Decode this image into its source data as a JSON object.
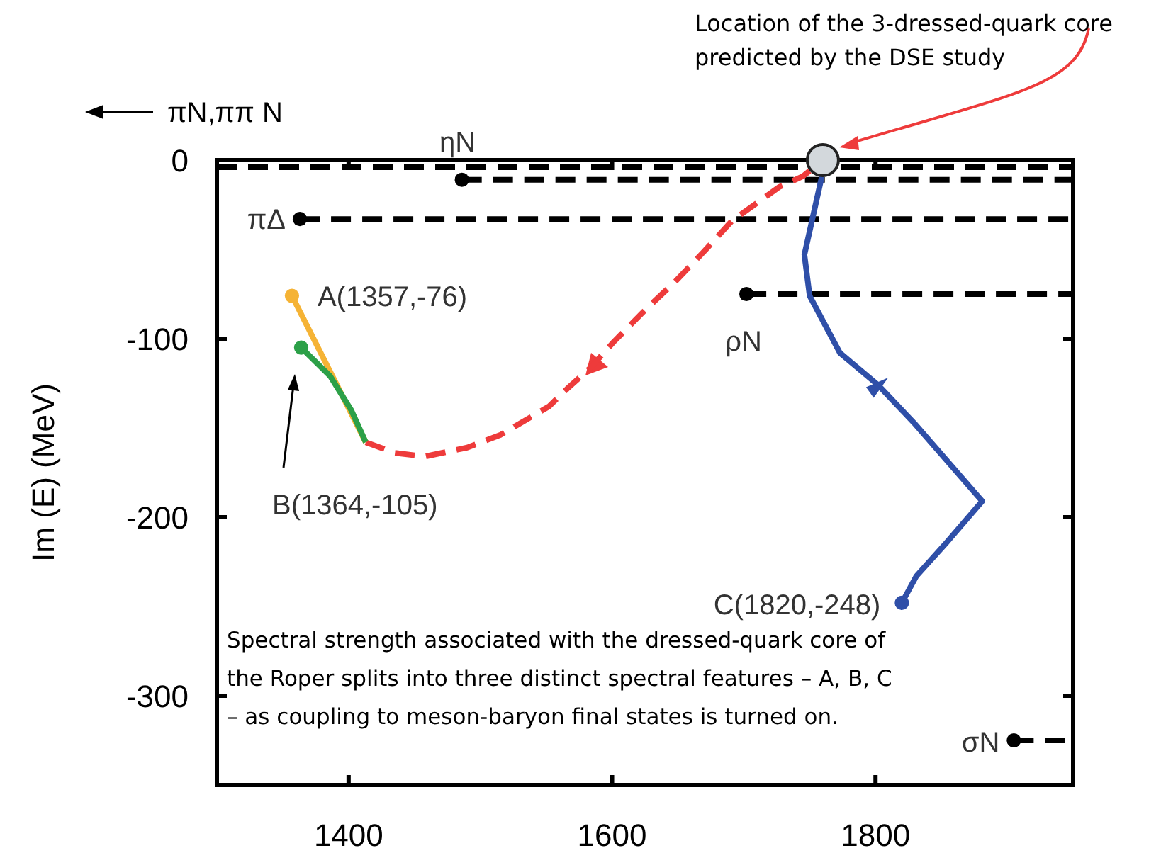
{
  "chart_data": {
    "type": "line",
    "ylabel": "Im (E) (MeV)",
    "xlim": [
      1300,
      1950
    ],
    "ylim": [
      -350,
      0
    ],
    "xticks": [
      1400,
      1600,
      1800
    ],
    "yticks": [
      0,
      -100,
      -200,
      -300
    ],
    "grid": false,
    "legend": "top left",
    "series": [
      {
        "name": "πN,ππ N",
        "color": "#000000",
        "line_style": "dashed",
        "marker": "none",
        "x": [
          1300,
          1950
        ],
        "values": [
          -4,
          -4
        ]
      },
      {
        "name": "ηN",
        "color": "#000000",
        "line_style": "dashed",
        "marker": "none",
        "x": [
          1486,
          1950
        ],
        "values": [
          -11,
          -11
        ]
      },
      {
        "name": "πΔ",
        "color": "#000000",
        "line_style": "dashed",
        "marker": "none",
        "x": [
          1363,
          1950
        ],
        "values": [
          -33,
          -33
        ]
      },
      {
        "name": "ρN",
        "color": "#000000",
        "line_style": "dashed",
        "marker": "none",
        "x": [
          1702,
          1950
        ],
        "values": [
          -75,
          -75
        ]
      },
      {
        "name": "σN",
        "color": "#000000",
        "line_style": "dashed",
        "marker": "none",
        "x": [
          1905,
          1950
        ],
        "values": [
          -325,
          -325
        ]
      },
      {
        "type": "scatter",
        "color": "#000000",
        "marker": "circle",
        "x": [
          1486,
          1363,
          1702,
          1905
        ],
        "values": [
          -11,
          -33,
          -75,
          -325
        ]
      },
      {
        "color": "#ee3b3b",
        "line_style": "dashed",
        "marker": "none",
        "x": [
          1413,
          1435,
          1458,
          1490,
          1515,
          1552,
          1566,
          1584,
          1601,
          1625,
          1648,
          1670,
          1691,
          1727,
          1745,
          1760
        ],
        "values": [
          -158,
          -164,
          -166,
          -161,
          -154,
          -138,
          -128,
          -116,
          -102,
          -84,
          -68,
          -51,
          -34,
          -15,
          -9,
          0
        ]
      },
      {
        "color": "#f5b335",
        "line_style": "solid",
        "marker": "none",
        "x": [
          1357,
          1413
        ],
        "values": [
          -76,
          -158
        ]
      },
      {
        "color": "#2ca048",
        "line_style": "solid",
        "marker": "none",
        "x": [
          1364,
          1386,
          1402,
          1413
        ],
        "values": [
          -105,
          -121,
          -140,
          -158
        ]
      },
      {
        "color": "#2f4fa8",
        "line_style": "solid",
        "marker": "none",
        "x": [
          1760,
          1759,
          1746,
          1750,
          1773,
          1802,
          1829,
          1881,
          1853,
          1831,
          1820
        ],
        "values": [
          0,
          -10,
          -53,
          -76,
          -108,
          -126,
          -147,
          -191,
          -215,
          -233,
          -248
        ]
      },
      {
        "type": "scatter",
        "color": "#f5b335",
        "marker": "circle",
        "x": [
          1357
        ],
        "values": [
          -76
        ]
      },
      {
        "type": "scatter",
        "color": "#2ca048",
        "marker": "circle",
        "x": [
          1364
        ],
        "values": [
          -105
        ]
      },
      {
        "type": "scatter",
        "color": "#2f4fa8",
        "marker": "circle",
        "x": [
          1820
        ],
        "values": [
          -248
        ]
      },
      {
        "type": "bubble",
        "color": "#d3d8dc",
        "x": [
          1760
        ],
        "values": [
          0
        ],
        "sizes": [
          1
        ]
      }
    ],
    "annotations": [
      "Location of the 3-dressed-quark core\npredicted by the DSE study",
      {
        "text": "A(1357,-76)",
        "x": 1357,
        "y": -76
      },
      "B(1364,-105)",
      {
        "text": "C(1820,-248)",
        "x": 1820,
        "y": -248
      },
      "Spectral strength associated with the dressed-quark core of\nthe Roper splits into three distinct spectral features – A, B, C\n– as coupling to meson-baryon final states is turned on."
    ]
  }
}
